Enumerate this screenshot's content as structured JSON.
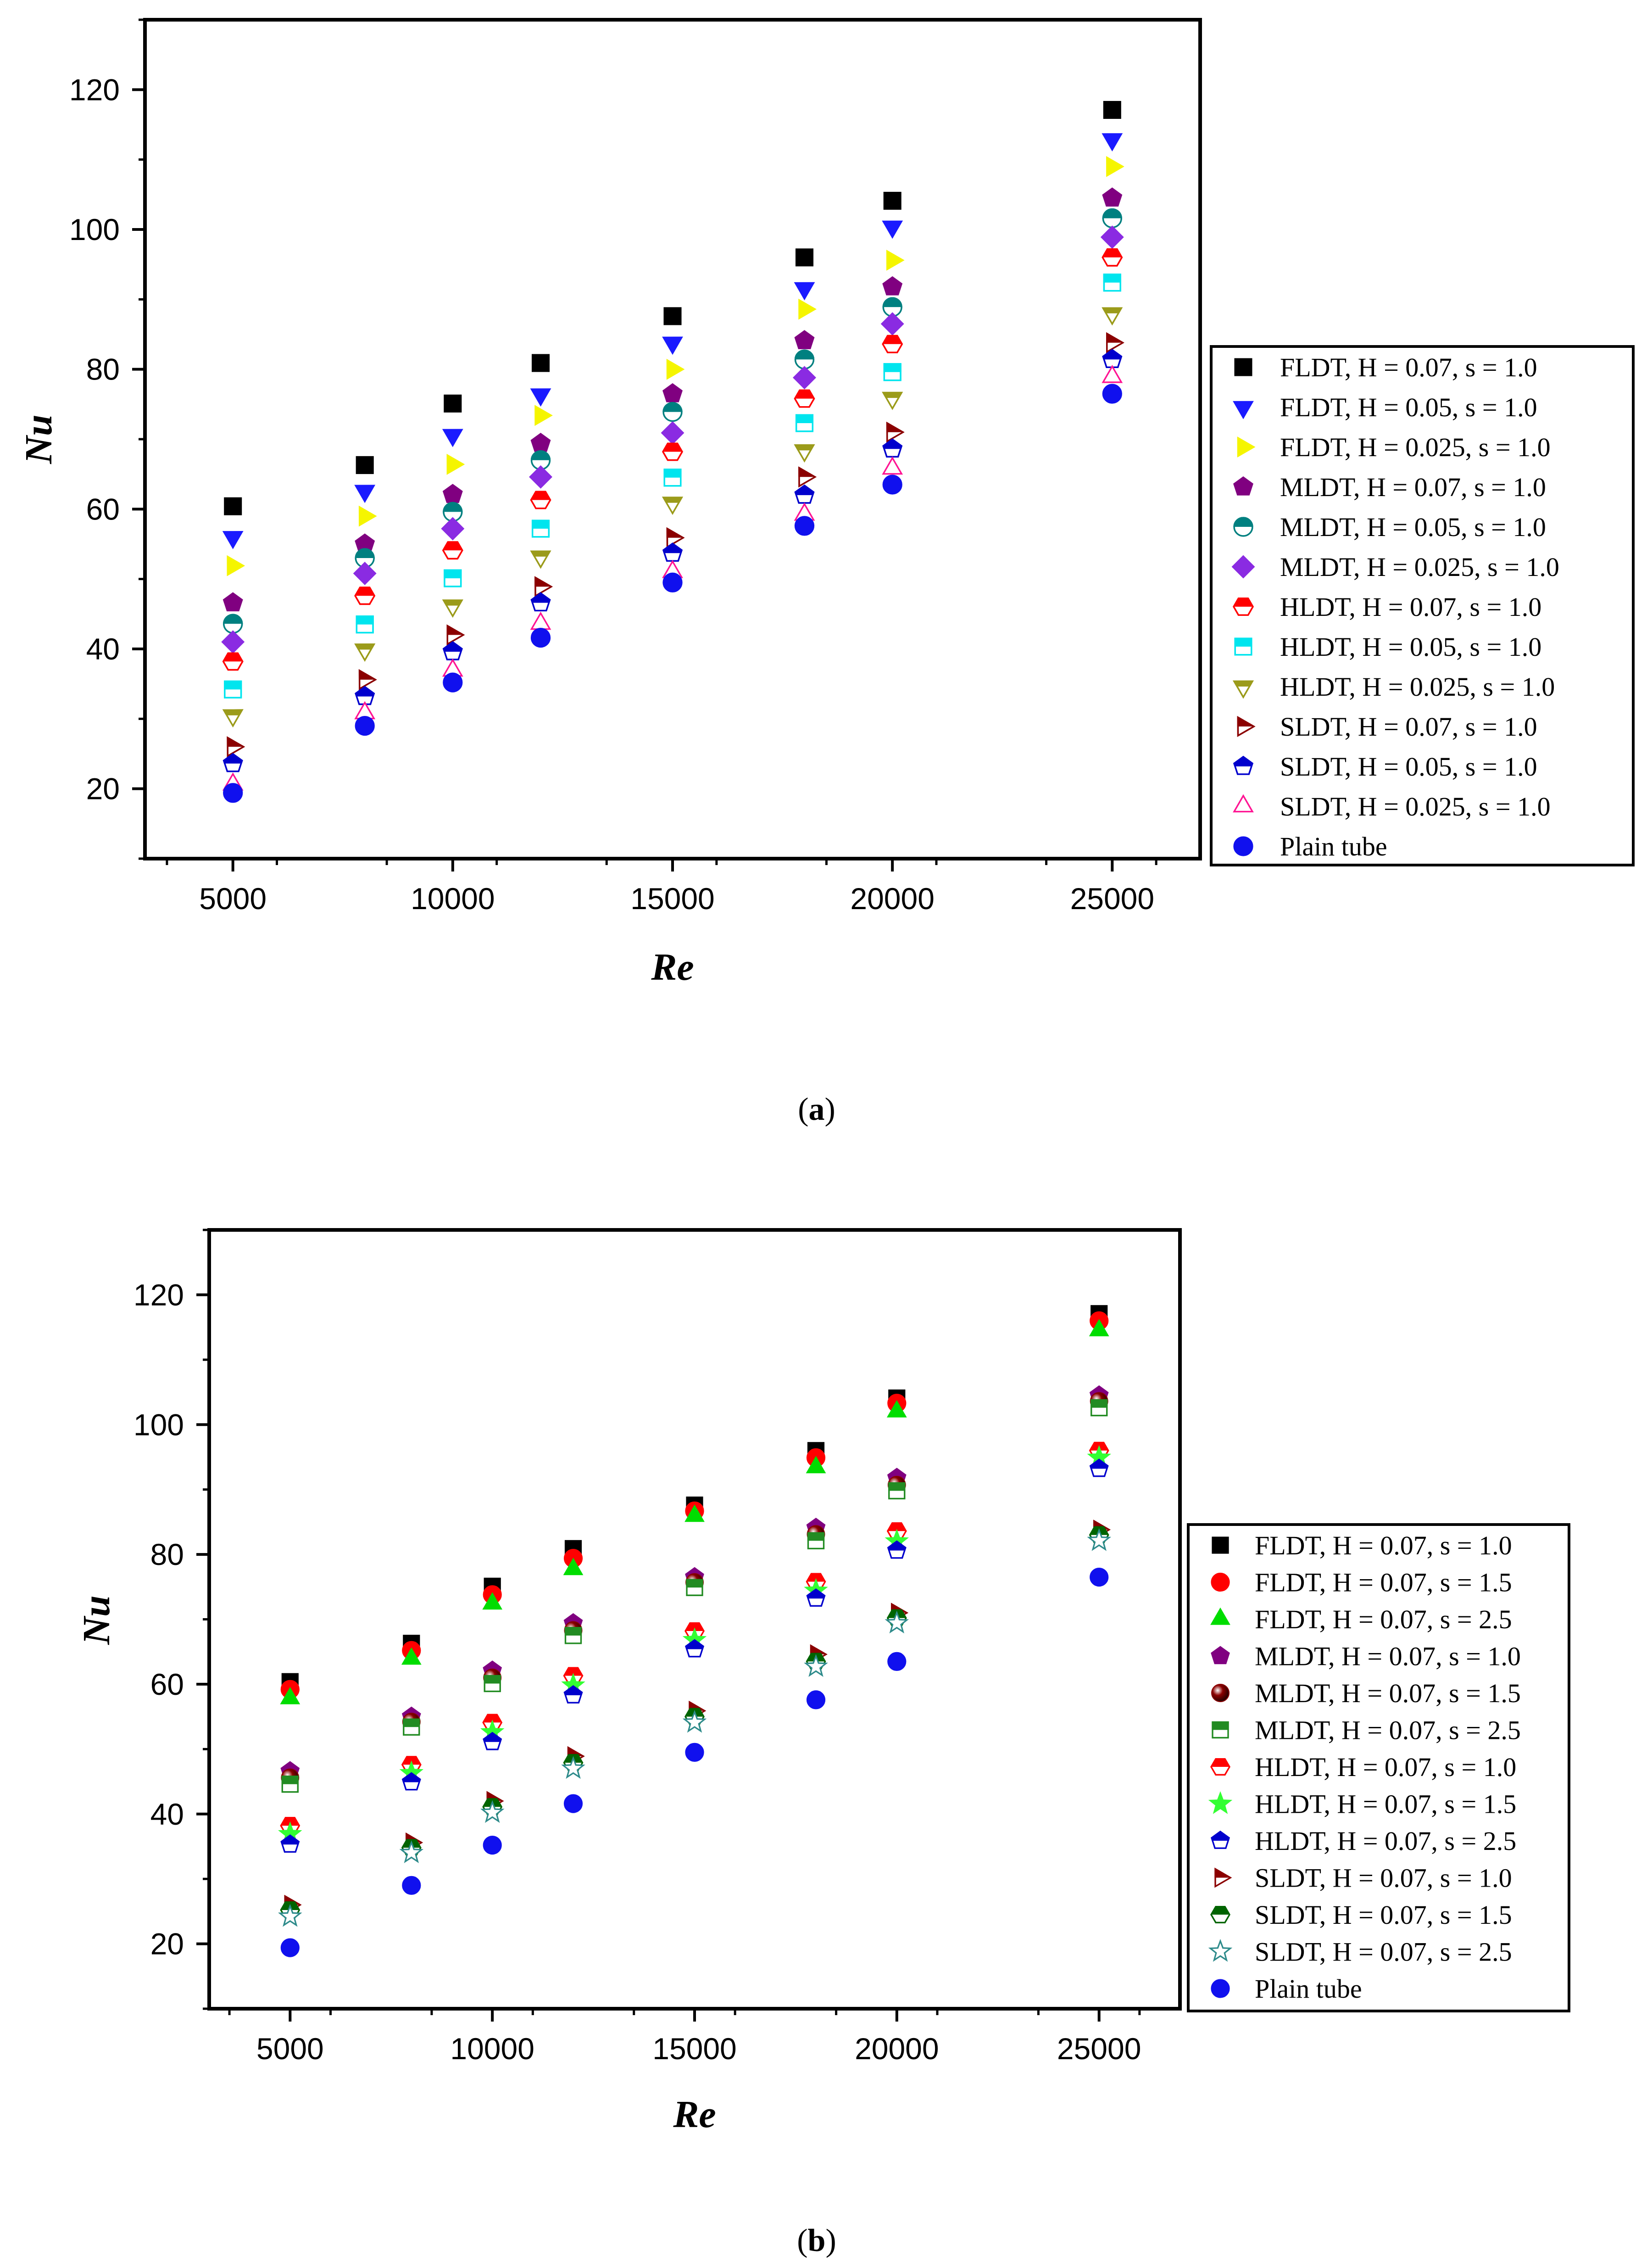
{
  "chart_data": [
    {
      "type": "scatter",
      "caption": "a",
      "xlabel": "Re",
      "ylabel": "Nu",
      "xlim": [
        3000,
        27000
      ],
      "ylim": [
        10,
        130
      ],
      "xticks": [
        5000,
        10000,
        15000,
        20000,
        25000
      ],
      "xtick_labels": [
        "5000",
        "10000",
        "15000",
        "20000",
        "25000"
      ],
      "yticks": [
        20,
        40,
        60,
        80,
        100,
        120
      ],
      "ytick_labels": [
        "20",
        "40",
        "60",
        "80",
        "100",
        "120"
      ],
      "x": [
        5000,
        8000,
        10000,
        12000,
        15000,
        18000,
        20000,
        25000
      ],
      "legend_position": "right",
      "series": [
        {
          "name": "FLDT, H = 0.07, s = 1.0",
          "marker": "square",
          "color": "#000000",
          "values": [
            60.4,
            66.3,
            75.1,
            80.9,
            87.6,
            96.0,
            104.1,
            117.1
          ]
        },
        {
          "name": "FLDT, H = 0.05, s = 1.0",
          "marker": "triangle-down",
          "color": "#1a1aff",
          "values": [
            56.0,
            62.6,
            70.6,
            76.4,
            83.8,
            91.6,
            100.4,
            112.9
          ]
        },
        {
          "name": "FLDT, H = 0.025, s = 1.0",
          "marker": "triangle-right",
          "color": "#f5f500",
          "values": [
            51.9,
            59.0,
            66.4,
            73.4,
            80.0,
            88.6,
            95.6,
            109.0
          ]
        },
        {
          "name": "MLDT, H = 0.07, s = 1.0",
          "marker": "pentagon",
          "color": "#800080",
          "values": [
            46.6,
            55.0,
            62.1,
            69.4,
            76.5,
            84.1,
            91.8,
            104.5
          ]
        },
        {
          "name": "MLDT, H = 0.05, s = 1.0",
          "marker": "circle-half",
          "color": "#008080",
          "values": [
            43.6,
            53.0,
            59.6,
            67.0,
            73.9,
            81.4,
            88.9,
            101.6
          ]
        },
        {
          "name": "MLDT, H = 0.025, s = 1.0",
          "marker": "diamond",
          "color": "#8a2be2",
          "values": [
            41.0,
            50.8,
            57.2,
            64.6,
            70.9,
            78.8,
            86.5,
            98.9
          ]
        },
        {
          "name": "HLDT, H = 0.07, s = 1.0",
          "marker": "hexagon-half",
          "color": "#ff0000",
          "values": [
            38.2,
            47.6,
            54.1,
            61.3,
            68.2,
            75.8,
            83.6,
            96.0
          ]
        },
        {
          "name": "HLDT, H = 0.05, s = 1.0",
          "marker": "square-half",
          "color": "#00e5ee",
          "values": [
            34.2,
            43.5,
            50.1,
            57.2,
            64.5,
            72.3,
            79.6,
            92.4
          ]
        },
        {
          "name": "HLDT, H = 0.025, s = 1.0",
          "marker": "triangle-down-half",
          "color": "#9b9b1a",
          "values": [
            30.5,
            39.9,
            46.2,
            53.2,
            60.9,
            68.4,
            75.9,
            88.0
          ]
        },
        {
          "name": "SLDT, H = 0.07, s = 1.0",
          "marker": "triangle-right-half",
          "color": "#8b0000",
          "values": [
            26.0,
            35.6,
            42.0,
            48.9,
            55.9,
            64.6,
            71.0,
            83.8
          ]
        },
        {
          "name": "SLDT, H = 0.05, s = 1.0",
          "marker": "pentagon-half",
          "color": "#0000cd",
          "values": [
            23.6,
            33.2,
            39.6,
            46.6,
            53.7,
            62.0,
            68.6,
            81.4
          ]
        },
        {
          "name": "SLDT, H = 0.025, s = 1.0",
          "marker": "triangle-up-open",
          "color": "#ff1493",
          "values": [
            20.6,
            30.8,
            36.9,
            43.6,
            51.0,
            59.2,
            65.8,
            78.9
          ]
        },
        {
          "name": "Plain tube",
          "marker": "circle",
          "color": "#1010ee",
          "values": [
            19.4,
            29.0,
            35.2,
            41.6,
            49.5,
            57.6,
            63.5,
            76.5
          ]
        }
      ]
    },
    {
      "type": "scatter",
      "caption": "b",
      "xlabel": "Re",
      "ylabel": "Nu",
      "xlim": [
        3000,
        27000
      ],
      "ylim": [
        10,
        130
      ],
      "xticks": [
        5000,
        10000,
        15000,
        20000,
        25000
      ],
      "xtick_labels": [
        "5000",
        "10000",
        "15000",
        "20000",
        "25000"
      ],
      "yticks": [
        20,
        40,
        60,
        80,
        100,
        120
      ],
      "ytick_labels": [
        "20",
        "40",
        "60",
        "80",
        "100",
        "120"
      ],
      "x": [
        5000,
        8000,
        10000,
        12000,
        15000,
        18000,
        20000,
        25000
      ],
      "legend_position": "right",
      "series": [
        {
          "name": "FLDT, H = 0.07, s = 1.0",
          "marker": "square",
          "color": "#000000",
          "values": [
            60.4,
            66.3,
            75.1,
            80.9,
            87.6,
            96.0,
            104.1,
            117.1
          ]
        },
        {
          "name": "FLDT, H = 0.07, s = 1.5",
          "marker": "circle",
          "color": "#ff0000",
          "values": [
            59.2,
            65.2,
            73.8,
            79.4,
            86.7,
            94.9,
            103.3,
            116.0
          ]
        },
        {
          "name": "FLDT, H = 0.07, s = 2.5",
          "marker": "triangle-up",
          "color": "#00dd00",
          "values": [
            57.8,
            63.9,
            72.4,
            77.7,
            85.9,
            93.4,
            102.0,
            114.5
          ]
        },
        {
          "name": "MLDT, H = 0.07, s = 1.0",
          "marker": "pentagon",
          "color": "#800080",
          "values": [
            46.6,
            55.0,
            62.1,
            69.4,
            76.5,
            84.1,
            91.8,
            104.5
          ]
        },
        {
          "name": "MLDT, H = 0.07, s = 1.5",
          "marker": "sphere",
          "color": "#8b0000",
          "values": [
            45.6,
            54.2,
            61.0,
            68.3,
            75.7,
            83.1,
            90.7,
            103.6
          ]
        },
        {
          "name": "MLDT, H = 0.07, s = 2.5",
          "marker": "square-half",
          "color": "#228b22",
          "values": [
            44.6,
            53.4,
            60.1,
            67.5,
            74.9,
            82.1,
            89.8,
            102.6
          ]
        },
        {
          "name": "HLDT, H = 0.07, s = 1.0",
          "marker": "hexagon-half",
          "color": "#ff0000",
          "values": [
            38.2,
            47.6,
            54.1,
            61.3,
            68.2,
            75.8,
            83.6,
            96.0
          ]
        },
        {
          "name": "HLDT, H = 0.07, s = 1.5",
          "marker": "star",
          "color": "#33ff33",
          "values": [
            36.9,
            46.3,
            52.6,
            59.8,
            66.8,
            74.4,
            82.0,
            94.9
          ]
        },
        {
          "name": "HLDT, H = 0.07, s = 2.5",
          "marker": "pentagon-half",
          "color": "#0000cd",
          "values": [
            35.3,
            44.9,
            51.1,
            58.3,
            65.4,
            73.2,
            80.6,
            93.2
          ]
        },
        {
          "name": "SLDT, H = 0.07, s = 1.0",
          "marker": "triangle-right-half",
          "color": "#8b0000",
          "values": [
            26.0,
            35.6,
            42.0,
            48.9,
            55.9,
            64.6,
            71.0,
            83.8
          ]
        },
        {
          "name": "SLDT, H = 0.07, s = 1.5",
          "marker": "hexagon-half",
          "color": "#006400",
          "values": [
            25.2,
            34.8,
            41.1,
            47.9,
            55.0,
            63.5,
            70.2,
            83.0
          ]
        },
        {
          "name": "SLDT, H = 0.07, s = 2.5",
          "marker": "star-open",
          "color": "#2e8b8b",
          "values": [
            24.2,
            34.0,
            40.2,
            47.0,
            54.1,
            62.7,
            69.4,
            82.1
          ]
        },
        {
          "name": "Plain tube",
          "marker": "circle",
          "color": "#1010ee",
          "values": [
            19.4,
            29.0,
            35.2,
            41.6,
            49.5,
            57.6,
            63.5,
            76.5
          ]
        }
      ]
    }
  ]
}
